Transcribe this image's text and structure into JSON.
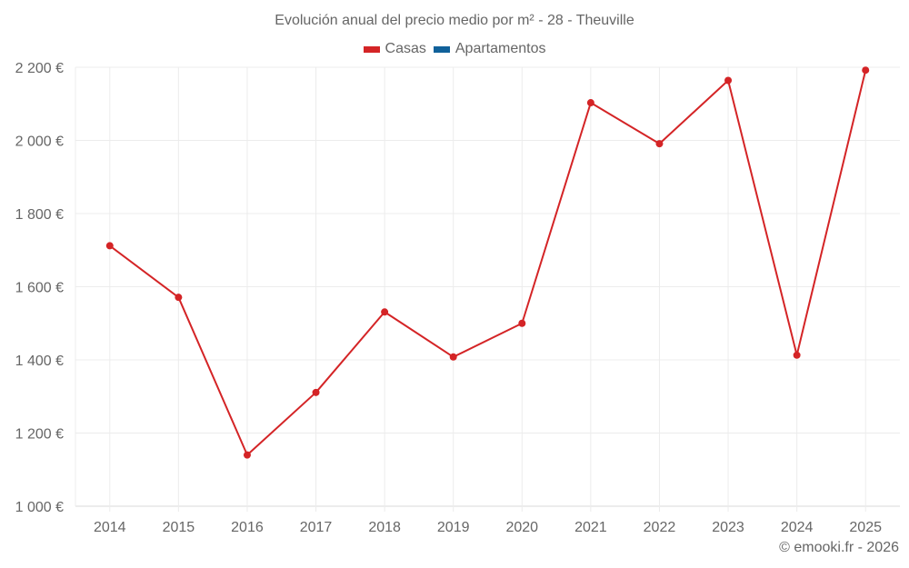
{
  "title": "Evolución anual del precio medio por m² - 28 - Theuville",
  "legend": [
    {
      "label": "Casas",
      "color": "#d42426"
    },
    {
      "label": "Apartamentos",
      "color": "#10619a"
    }
  ],
  "credit": "© emooki.fr - 2026",
  "chart_data": {
    "type": "line",
    "title": "Evolución anual del precio medio por m² - 28 - Theuville",
    "xlabel": "",
    "ylabel": "",
    "categories": [
      "2014",
      "2015",
      "2016",
      "2017",
      "2018",
      "2019",
      "2020",
      "2021",
      "2022",
      "2023",
      "2024",
      "2025"
    ],
    "series": [
      {
        "name": "Casas",
        "color": "#d42426",
        "values": [
          1712,
          1571,
          1140,
          1311,
          1531,
          1408,
          1500,
          2103,
          1991,
          2164,
          1413,
          2192
        ]
      },
      {
        "name": "Apartamentos",
        "color": "#10619a",
        "values": []
      }
    ],
    "yticks": [
      1000,
      1200,
      1400,
      1600,
      1800,
      2000,
      2200
    ],
    "ytick_labels": [
      "1 000 €",
      "1 200 €",
      "1 400 €",
      "1 600 €",
      "1 800 €",
      "2 000 €",
      "2 200 €"
    ],
    "ylim": [
      1000,
      2200
    ],
    "grid": true,
    "legend_position": "top"
  }
}
